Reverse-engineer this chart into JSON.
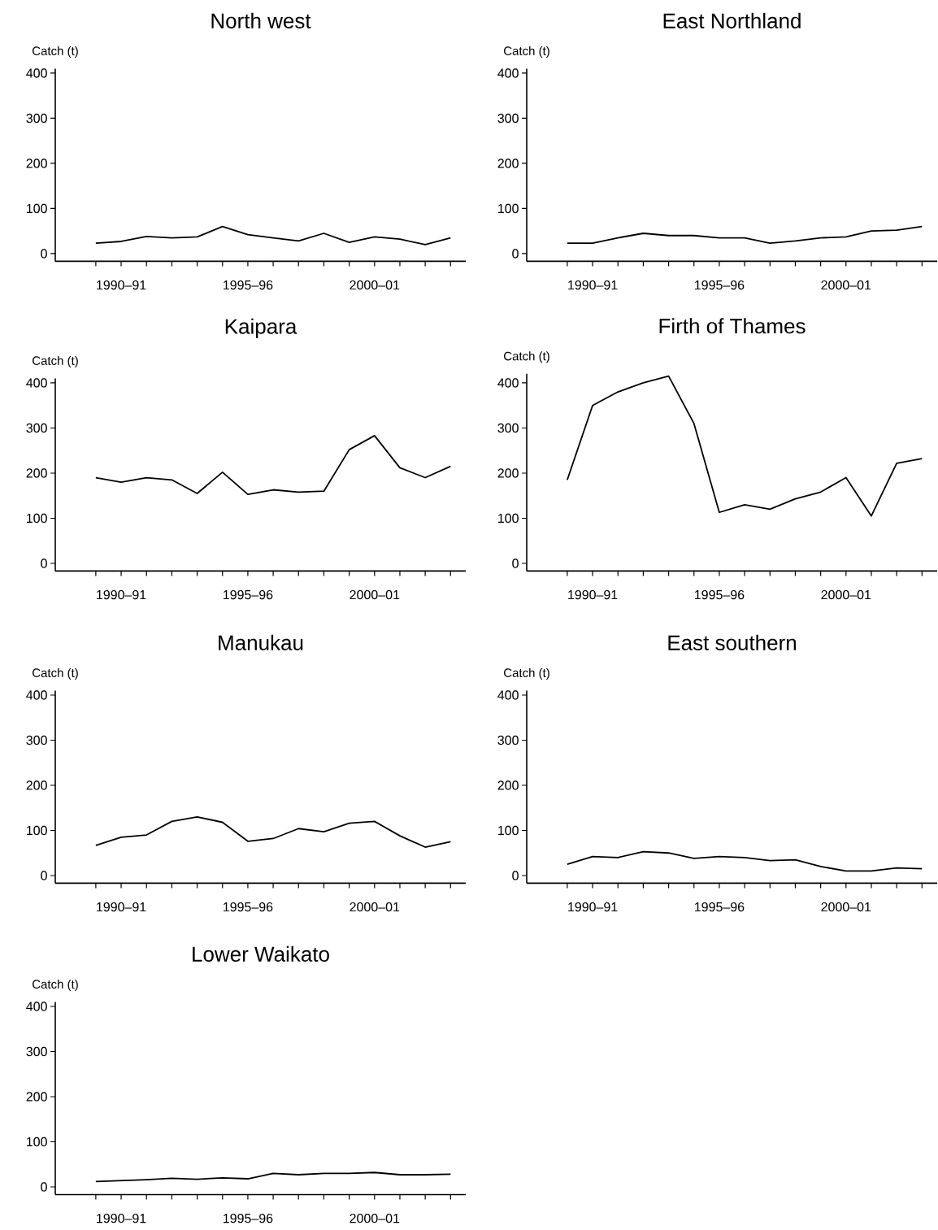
{
  "chart_data": [
    {
      "type": "line",
      "title": "North west",
      "ylabel": "Catch (t)",
      "color": "#000000",
      "categories": [
        null,
        "1990–91",
        null,
        null,
        null,
        null,
        "1995–96",
        null,
        null,
        null,
        null,
        "2000–01",
        null,
        null,
        null
      ],
      "values": [
        23,
        27,
        38,
        35,
        37,
        60,
        42,
        35,
        28,
        45,
        25,
        37,
        32,
        20,
        35
      ],
      "ylim": [
        -17,
        410
      ],
      "yticks": [
        0,
        100,
        200,
        300,
        400
      ]
    },
    {
      "type": "line",
      "title": "East Northland",
      "ylabel": "Catch (t)",
      "color": "#000000",
      "categories": [
        null,
        "1990–91",
        null,
        null,
        null,
        null,
        "1995–96",
        null,
        null,
        null,
        null,
        "2000–01",
        null,
        null,
        null
      ],
      "values": [
        23,
        23,
        35,
        45,
        40,
        40,
        35,
        35,
        23,
        28,
        35,
        37,
        50,
        52,
        60
      ],
      "ylim": [
        -17,
        410
      ],
      "yticks": [
        0,
        100,
        200,
        300,
        400
      ]
    },
    {
      "type": "line",
      "title": "Kaipara",
      "ylabel": "Catch (t)",
      "color": "#000000",
      "categories": [
        null,
        "1990–91",
        null,
        null,
        null,
        null,
        "1995–96",
        null,
        null,
        null,
        null,
        "2000–01",
        null,
        null,
        null
      ],
      "values": [
        190,
        180,
        190,
        185,
        155,
        202,
        153,
        163,
        158,
        160,
        252,
        283,
        212,
        190,
        215
      ],
      "ylim": [
        -17,
        410
      ],
      "yticks": [
        0,
        100,
        200,
        300,
        400
      ]
    },
    {
      "type": "line",
      "title": "Firth of Thames",
      "ylabel": "Catch (t)",
      "color": "#000000",
      "categories": [
        null,
        "1990–91",
        null,
        null,
        null,
        null,
        "1995–96",
        null,
        null,
        null,
        null,
        "2000–01",
        null,
        null,
        null
      ],
      "values": [
        185,
        350,
        380,
        400,
        415,
        310,
        113,
        130,
        120,
        143,
        158,
        190,
        105,
        222,
        232
      ],
      "ylim": [
        -17,
        420
      ],
      "yticks": [
        0,
        100,
        200,
        300,
        400
      ]
    },
    {
      "type": "line",
      "title": "Manukau",
      "ylabel": "Catch (t)",
      "color": "#000000",
      "categories": [
        null,
        "1990–91",
        null,
        null,
        null,
        null,
        "1995–96",
        null,
        null,
        null,
        null,
        "2000–01",
        null,
        null,
        null
      ],
      "values": [
        67,
        85,
        90,
        120,
        130,
        118,
        76,
        82,
        104,
        97,
        116,
        120,
        88,
        63,
        75
      ],
      "ylim": [
        -17,
        410
      ],
      "yticks": [
        0,
        100,
        200,
        300,
        400
      ]
    },
    {
      "type": "line",
      "title": "East southern",
      "ylabel": "Catch (t)",
      "color": "#000000",
      "categories": [
        null,
        "1990–91",
        null,
        null,
        null,
        null,
        "1995–96",
        null,
        null,
        null,
        null,
        "2000–01",
        null,
        null,
        null
      ],
      "values": [
        25,
        42,
        40,
        53,
        50,
        38,
        42,
        40,
        33,
        35,
        20,
        10,
        10,
        17,
        15
      ],
      "ylim": [
        -17,
        410
      ],
      "yticks": [
        0,
        100,
        200,
        300,
        400
      ]
    },
    {
      "type": "line",
      "title": "Lower Waikato",
      "ylabel": "Catch (t)",
      "color": "#000000",
      "categories": [
        null,
        "1990–91",
        null,
        null,
        null,
        null,
        "1995–96",
        null,
        null,
        null,
        null,
        "2000–01",
        null,
        null,
        null
      ],
      "values": [
        12,
        14,
        16,
        19,
        17,
        20,
        18,
        30,
        27,
        30,
        30,
        32,
        27,
        27,
        28
      ],
      "ylim": [
        -17,
        410
      ],
      "yticks": [
        0,
        100,
        200,
        300,
        400
      ]
    }
  ]
}
